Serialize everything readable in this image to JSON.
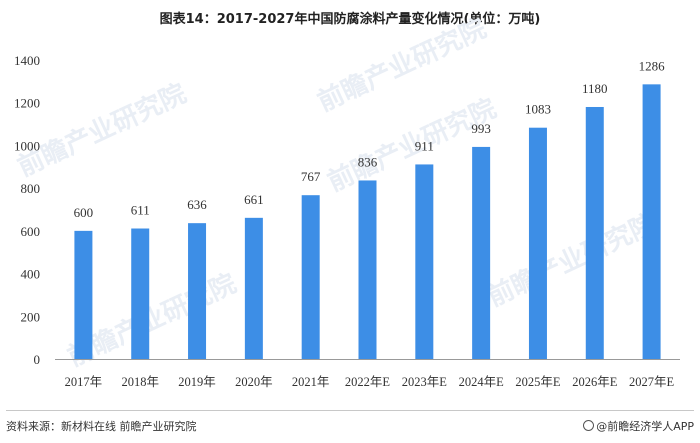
{
  "title": "图表14：2017-2027年中国防腐涂料产量变化情况(单位：万吨)",
  "watermark": "前瞻产业研究院",
  "source": "资料来源：新材料在线 前瞻产业研究院",
  "brand": "@前瞻经济学人APP",
  "colors": {
    "bar": "#3d8ee6",
    "axis": "#999999",
    "text": "#333333"
  },
  "chart_data": {
    "type": "bar",
    "title": "图表14：2017-2027年中国防腐涂料产量变化情况(单位：万吨)",
    "unit": "万吨",
    "categories": [
      "2017年",
      "2018年",
      "2019年",
      "2020年",
      "2021年",
      "2022年E",
      "2023年E",
      "2024年E",
      "2025年E",
      "2026年E",
      "2027年E"
    ],
    "values": [
      600,
      611,
      636,
      661,
      767,
      836,
      911,
      993,
      1083,
      1180,
      1286
    ],
    "data_labels": [
      "600",
      "611",
      "636",
      "661",
      "767",
      "836",
      "911",
      "993",
      "1083",
      "1180",
      "1286"
    ],
    "y_ticks": [
      "0",
      "200",
      "400",
      "600",
      "800",
      "1000",
      "1200",
      "1400"
    ],
    "ylim": [
      0,
      1400
    ],
    "grid": false,
    "legend": "none"
  }
}
